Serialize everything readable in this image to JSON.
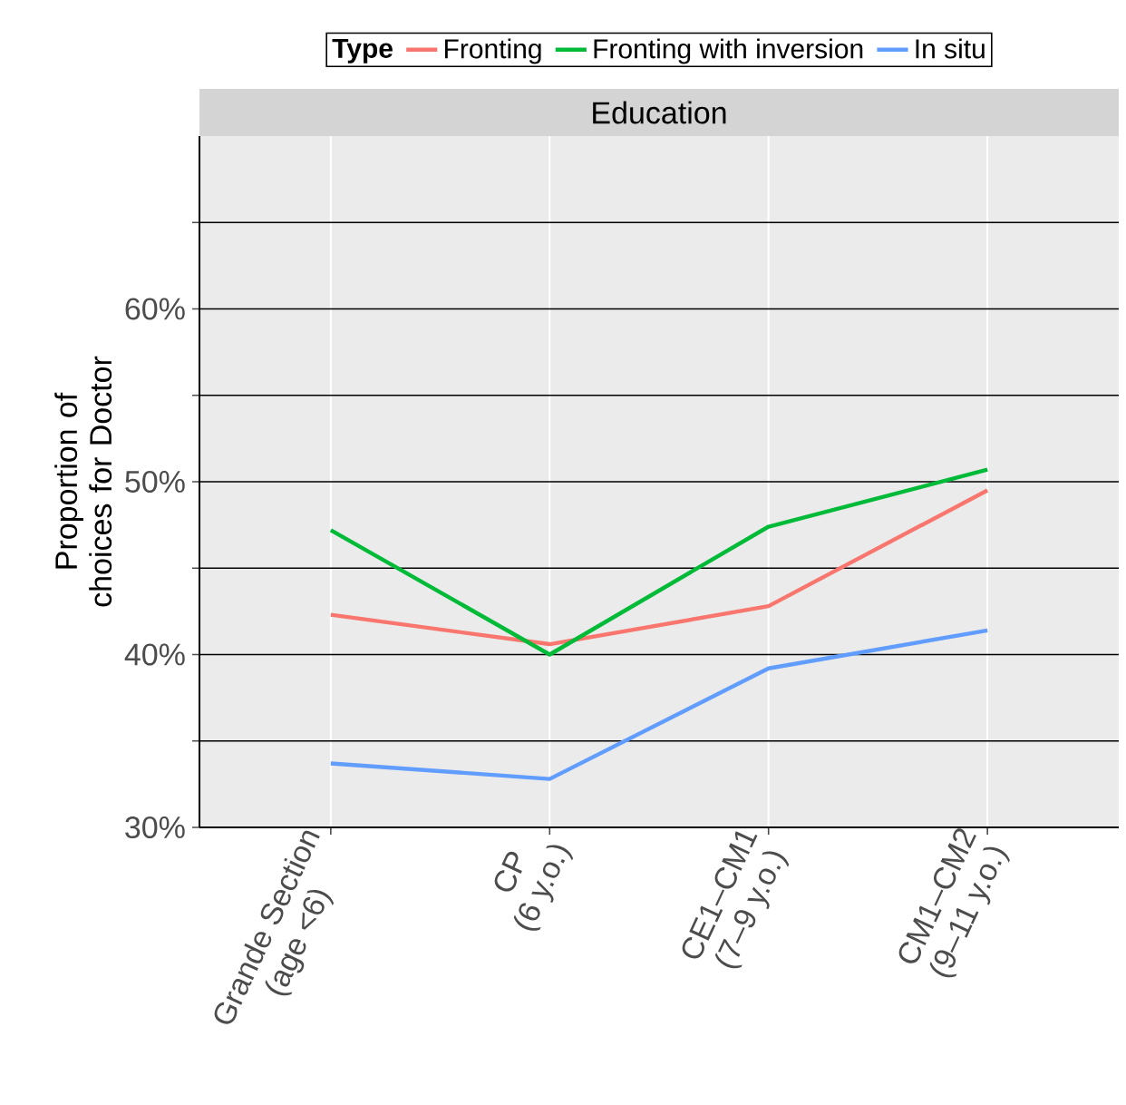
{
  "chart_data": {
    "type": "line",
    "title": "Education",
    "ylabel": "Proportion of choices for Doctor",
    "legend_title": "Type",
    "legend": "top",
    "categories": [
      "Grande Section (age <6)",
      "CP (6 y.o.)",
      "CE1–CM1 (7–9 y.o.)",
      "CM1–CM2 (9–11 y.o.)"
    ],
    "series": [
      {
        "name": "Fronting",
        "color": "#f8766d",
        "values": [
          42.3,
          40.6,
          42.8,
          49.5
        ]
      },
      {
        "name": "Fronting with inversion",
        "color": "#00ba38",
        "values": [
          47.2,
          40.0,
          47.4,
          50.7
        ]
      },
      {
        "name": "In situ",
        "color": "#619cff",
        "values": [
          33.7,
          32.8,
          39.2,
          41.4
        ]
      }
    ],
    "ylim": [
      30,
      70
    ],
    "yticks": [
      {
        "value": 30,
        "label": "30%"
      },
      {
        "value": 35,
        "label": null
      },
      {
        "value": 40,
        "label": "40%"
      },
      {
        "value": 45,
        "label": null
      },
      {
        "value": 50,
        "label": "50%"
      },
      {
        "value": 55,
        "label": null
      },
      {
        "value": 60,
        "label": "60%"
      },
      {
        "value": 65,
        "label": null
      }
    ],
    "grid": true
  }
}
